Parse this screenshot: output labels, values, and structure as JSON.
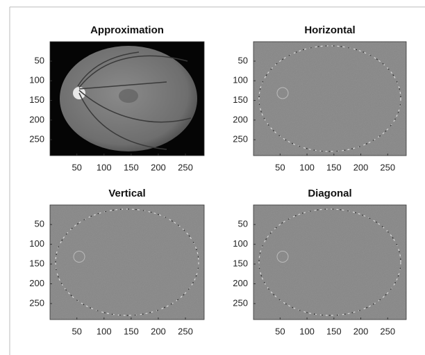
{
  "panels": [
    {
      "title": "Approximation",
      "xlim": [
        0.5,
        284.5
      ],
      "ylim": [
        0.5,
        290.5
      ],
      "xticks": [
        50,
        100,
        150,
        200,
        250
      ],
      "yticks": [
        50,
        100,
        150,
        200,
        250
      ]
    },
    {
      "title": "Horizontal",
      "xlim": [
        0.5,
        284.5
      ],
      "ylim": [
        0.5,
        290.5
      ],
      "xticks": [
        50,
        100,
        150,
        200,
        250
      ],
      "yticks": [
        50,
        100,
        150,
        200,
        250
      ]
    },
    {
      "title": "Vertical",
      "xlim": [
        0.5,
        284.5
      ],
      "ylim": [
        0.5,
        290.5
      ],
      "xticks": [
        50,
        100,
        150,
        200,
        250
      ],
      "yticks": [
        50,
        100,
        150,
        200,
        250
      ]
    },
    {
      "title": "Diagonal",
      "xlim": [
        0.5,
        284.5
      ],
      "ylim": [
        0.5,
        290.5
      ],
      "xticks": [
        50,
        100,
        150,
        200,
        250
      ],
      "yticks": [
        50,
        100,
        150,
        200,
        250
      ]
    }
  ]
}
